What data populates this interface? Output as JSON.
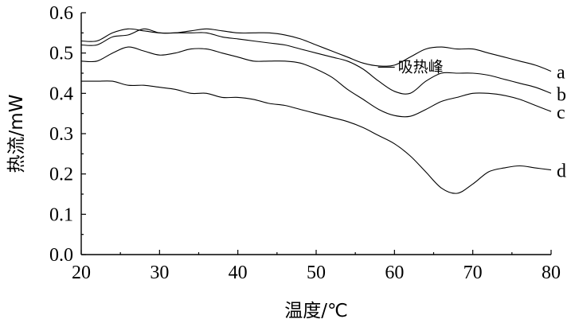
{
  "chart_data": {
    "type": "line",
    "title": "",
    "xlabel": "温度/℃",
    "ylabel": "热流/mW",
    "xlim": [
      20,
      80
    ],
    "ylim": [
      0,
      0.6
    ],
    "xticks": [
      "20",
      "30",
      "40",
      "50",
      "60",
      "70",
      "80"
    ],
    "yticks": [
      "0.0",
      "0.1",
      "0.2",
      "0.3",
      "0.4",
      "0.5",
      "0.6"
    ],
    "grid": false,
    "legend": "labels at line ends (right)",
    "annotation": {
      "text": "吸热峰",
      "x": 58,
      "y": 0.465
    },
    "series": [
      {
        "name": "a",
        "x": [
          20,
          22,
          24,
          26,
          28,
          30,
          32,
          34,
          36,
          38,
          40,
          42,
          44,
          46,
          48,
          50,
          52,
          54,
          56,
          58,
          60,
          62,
          64,
          66,
          68,
          70,
          72,
          74,
          76,
          78,
          80
        ],
        "y": [
          0.53,
          0.53,
          0.55,
          0.56,
          0.555,
          0.55,
          0.55,
          0.555,
          0.56,
          0.555,
          0.55,
          0.55,
          0.55,
          0.545,
          0.535,
          0.52,
          0.505,
          0.49,
          0.475,
          0.468,
          0.47,
          0.49,
          0.51,
          0.515,
          0.51,
          0.51,
          0.5,
          0.49,
          0.48,
          0.47,
          0.455
        ]
      },
      {
        "name": "b",
        "x": [
          20,
          22,
          24,
          26,
          28,
          30,
          32,
          34,
          36,
          38,
          40,
          42,
          44,
          46,
          48,
          50,
          52,
          54,
          56,
          58,
          60,
          62,
          64,
          66,
          68,
          70,
          72,
          74,
          76,
          78,
          80
        ],
        "y": [
          0.52,
          0.52,
          0.54,
          0.545,
          0.56,
          0.55,
          0.55,
          0.55,
          0.55,
          0.54,
          0.535,
          0.53,
          0.525,
          0.52,
          0.51,
          0.5,
          0.49,
          0.48,
          0.46,
          0.43,
          0.405,
          0.4,
          0.43,
          0.45,
          0.45,
          0.45,
          0.445,
          0.435,
          0.425,
          0.415,
          0.4
        ]
      },
      {
        "name": "c",
        "x": [
          20,
          22,
          24,
          26,
          28,
          30,
          32,
          34,
          36,
          38,
          40,
          42,
          44,
          46,
          48,
          50,
          52,
          54,
          56,
          58,
          60,
          62,
          64,
          66,
          68,
          70,
          72,
          74,
          76,
          78,
          80
        ],
        "y": [
          0.48,
          0.48,
          0.5,
          0.515,
          0.505,
          0.495,
          0.5,
          0.51,
          0.51,
          0.5,
          0.49,
          0.48,
          0.48,
          0.48,
          0.475,
          0.46,
          0.44,
          0.41,
          0.385,
          0.36,
          0.345,
          0.343,
          0.36,
          0.38,
          0.39,
          0.4,
          0.4,
          0.395,
          0.385,
          0.37,
          0.355
        ]
      },
      {
        "name": "d",
        "x": [
          20,
          22,
          24,
          26,
          28,
          30,
          32,
          34,
          36,
          38,
          40,
          42,
          44,
          46,
          48,
          50,
          52,
          54,
          56,
          58,
          60,
          62,
          64,
          66,
          68,
          70,
          72,
          74,
          76,
          78,
          80
        ],
        "y": [
          0.43,
          0.43,
          0.43,
          0.42,
          0.42,
          0.415,
          0.41,
          0.4,
          0.4,
          0.39,
          0.39,
          0.385,
          0.375,
          0.37,
          0.36,
          0.35,
          0.34,
          0.33,
          0.315,
          0.295,
          0.275,
          0.245,
          0.205,
          0.165,
          0.152,
          0.175,
          0.205,
          0.215,
          0.22,
          0.215,
          0.21
        ]
      }
    ]
  }
}
